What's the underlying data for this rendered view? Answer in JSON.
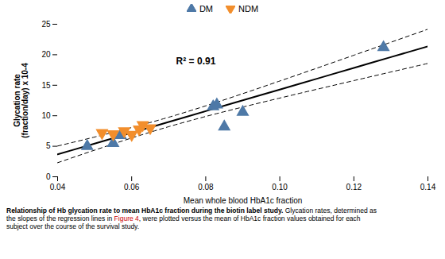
{
  "chart_data": {
    "type": "scatter",
    "x_label": "Mean whole blood HbA1c fraction",
    "y_label": "Glycation rate\n(fraction/day) x 10-4",
    "xlim": [
      0.04,
      0.14
    ],
    "xticks": [
      0.04,
      0.06,
      0.08,
      {
        "value": 0.1,
        "label": "0.10"
      },
      0.12,
      0.14
    ],
    "ylim": [
      0,
      25
    ],
    "yticks": [
      0,
      5,
      10,
      15,
      20,
      25
    ],
    "grid": false,
    "legend": "top",
    "series": [
      {
        "name": "DM",
        "marker": "triangle-up",
        "x": [
          0.048,
          0.055,
          0.057,
          0.082,
          0.083,
          0.085,
          0.09,
          0.128
        ],
        "values": [
          5.0,
          5.5,
          6.8,
          11.5,
          11.8,
          8.2,
          10.6,
          21.2
        ]
      },
      {
        "name": "NDM",
        "marker": "triangle-down",
        "x": [
          0.052,
          0.055,
          0.058,
          0.06,
          0.062,
          0.063,
          0.065
        ],
        "values": [
          7.2,
          7.0,
          7.5,
          6.9,
          7.8,
          8.5,
          8.0
        ]
      },
      {
        "type": "line",
        "line_style": "dashed",
        "x": [
          0.04,
          0.05,
          0.06,
          0.07,
          0.08,
          0.09,
          0.1,
          0.11,
          0.12,
          0.13,
          0.14
        ],
        "values": [
          5.0372,
          6.5145,
          8.0652,
          9.755,
          11.6238,
          13.6251,
          15.695,
          17.7983,
          19.9191,
          22.0498,
          24.1868
        ]
      },
      {
        "type": "line",
        "line_style": "dashed",
        "x": [
          0.04,
          0.05,
          0.06,
          0.07,
          0.08,
          0.09,
          0.1,
          0.11,
          0.12,
          0.13,
          0.14
        ],
        "values": [
          2.3,
          4.3654,
          6.3574,
          8.2104,
          9.8843,
          11.4257,
          12.8985,
          14.3379,
          15.7599,
          17.1718,
          18.5776
        ]
      },
      {
        "type": "line",
        "line_style": "solid",
        "x": [
          0.04,
          0.05,
          0.06,
          0.07,
          0.08,
          0.09,
          0.1,
          0.11,
          0.12,
          0.13,
          0.14
        ],
        "values": [
          3.6686,
          5.44,
          7.2113,
          8.9827,
          10.754,
          12.5254,
          14.2968,
          16.0681,
          17.8395,
          19.6108,
          21.3822
        ]
      }
    ],
    "annotations": [
      {
        "text": "R² = 0.91",
        "x": 0.072,
        "y": 19.5
      }
    ],
    "caption": [
      [
        {
          "text": "Relationship of Hb glycation rate to mean HbA1c fraction during the biotin label study."
        },
        {
          "text": " Glycation rates, determined as"
        }
      ],
      [
        {
          "text": "the slopes of the regression lines in "
        },
        {
          "text": "Figure 4",
          "color": "#cc0000"
        },
        {
          "text": ", were plotted versus the mean of HbA1c fraction values obtained for each"
        }
      ],
      [
        {
          "text": "subject over the course of the survival study."
        }
      ]
    ]
  }
}
